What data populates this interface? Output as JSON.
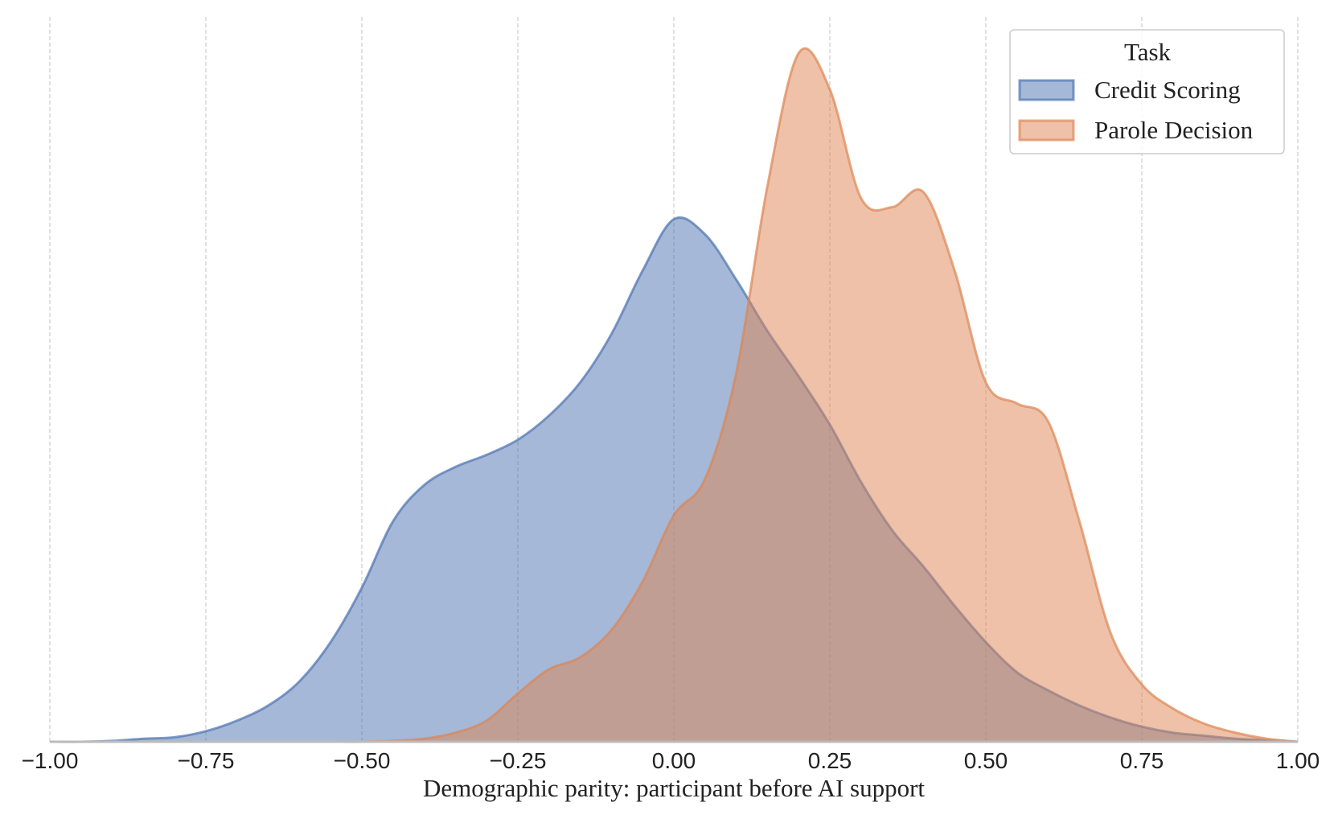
{
  "chart_data": {
    "type": "area",
    "xlabel": "Demographic parity: participant before AI support",
    "x": [
      -1.0,
      -0.95,
      -0.9,
      -0.85,
      -0.8,
      -0.75,
      -0.7,
      -0.65,
      -0.6,
      -0.55,
      -0.5,
      -0.45,
      -0.4,
      -0.35,
      -0.3,
      -0.25,
      -0.2,
      -0.15,
      -0.1,
      -0.05,
      0.0,
      0.05,
      0.1,
      0.15,
      0.2,
      0.25,
      0.3,
      0.35,
      0.4,
      0.45,
      0.5,
      0.55,
      0.6,
      0.65,
      0.7,
      0.75,
      0.8,
      0.85,
      0.9,
      0.95,
      1.0
    ],
    "series": [
      {
        "name": "Credit Scoring",
        "color": "#4c72b0",
        "values": [
          0,
          0,
          0.003,
          0.01,
          0.015,
          0.035,
          0.07,
          0.12,
          0.2,
          0.33,
          0.51,
          0.73,
          0.85,
          0.91,
          0.95,
          1.0,
          1.08,
          1.19,
          1.35,
          1.56,
          1.73,
          1.68,
          1.53,
          1.36,
          1.21,
          1.05,
          0.86,
          0.7,
          0.58,
          0.45,
          0.33,
          0.23,
          0.17,
          0.12,
          0.08,
          0.05,
          0.03,
          0.02,
          0.01,
          0.005,
          0
        ]
      },
      {
        "name": "Parole Decision",
        "color": "#dd8452",
        "values": [
          0,
          0,
          0,
          0,
          0,
          0,
          0,
          0,
          0,
          0,
          0,
          0.003,
          0.01,
          0.03,
          0.07,
          0.16,
          0.24,
          0.28,
          0.37,
          0.53,
          0.75,
          0.87,
          1.22,
          1.84,
          2.28,
          2.16,
          1.8,
          1.77,
          1.82,
          1.56,
          1.19,
          1.12,
          1.06,
          0.73,
          0.36,
          0.19,
          0.11,
          0.06,
          0.03,
          0.01,
          0
        ]
      }
    ],
    "legend_title": "Task",
    "legend": "upper right",
    "grid": true,
    "xlim": [
      -1.0,
      1.0
    ],
    "ylim": [
      0,
      2.4
    ],
    "xticks": [
      {
        "value": -1.0,
        "label": "−1.00"
      },
      {
        "value": -0.75,
        "label": "−0.75"
      },
      {
        "value": -0.5,
        "label": "−0.50"
      },
      {
        "value": -0.25,
        "label": "−0.25"
      },
      {
        "value": 0.0,
        "label": "0.00"
      },
      {
        "value": 0.25,
        "label": "0.25"
      },
      {
        "value": 0.5,
        "label": "0.50"
      },
      {
        "value": 0.75,
        "label": "0.75"
      },
      {
        "value": 1.0,
        "label": "1.00"
      }
    ]
  }
}
